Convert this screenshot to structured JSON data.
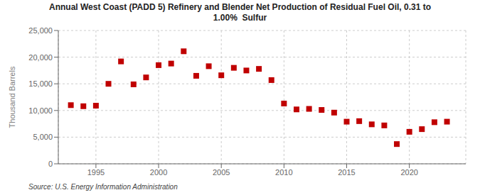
{
  "chart_data": {
    "type": "scatter",
    "title": "Annual West Coast (PADD 5) Refinery and Blender Net Production of Residual Fuel Oil, 0.31 to\n1.00%  Sulfur",
    "y_label": "Thousand Barrels",
    "source": "Source: U.S. Energy Information Administration",
    "color": "#c00000",
    "marker": "square",
    "x": [
      1993,
      1994,
      1995,
      1996,
      1997,
      1998,
      1999,
      2000,
      2001,
      2002,
      2003,
      2004,
      2005,
      2006,
      2007,
      2008,
      2009,
      2010,
      2011,
      2012,
      2013,
      2014,
      2015,
      2016,
      2017,
      2018,
      2019,
      2020,
      2021,
      2022,
      2023
    ],
    "values": [
      11000,
      10800,
      10900,
      15000,
      19200,
      14900,
      16200,
      18500,
      18800,
      21100,
      16500,
      18300,
      16600,
      18000,
      17500,
      17800,
      15700,
      11300,
      10200,
      10300,
      10100,
      9600,
      7900,
      8000,
      7400,
      7200,
      3700,
      6000,
      6500,
      7800,
      7900
    ],
    "xlim": [
      1992,
      2024.5
    ],
    "xticks": [
      1995,
      2000,
      2005,
      2010,
      2015,
      2020
    ],
    "ylim": [
      0,
      25000
    ],
    "yticks": [
      0,
      {
        "value": 5000,
        "label": "5,000"
      },
      {
        "value": 10000,
        "label": "10,000"
      },
      {
        "value": 15000,
        "label": "15,000"
      },
      {
        "value": 20000,
        "label": "20,000"
      },
      {
        "value": 25000,
        "label": "25,000"
      }
    ],
    "grid": true
  }
}
